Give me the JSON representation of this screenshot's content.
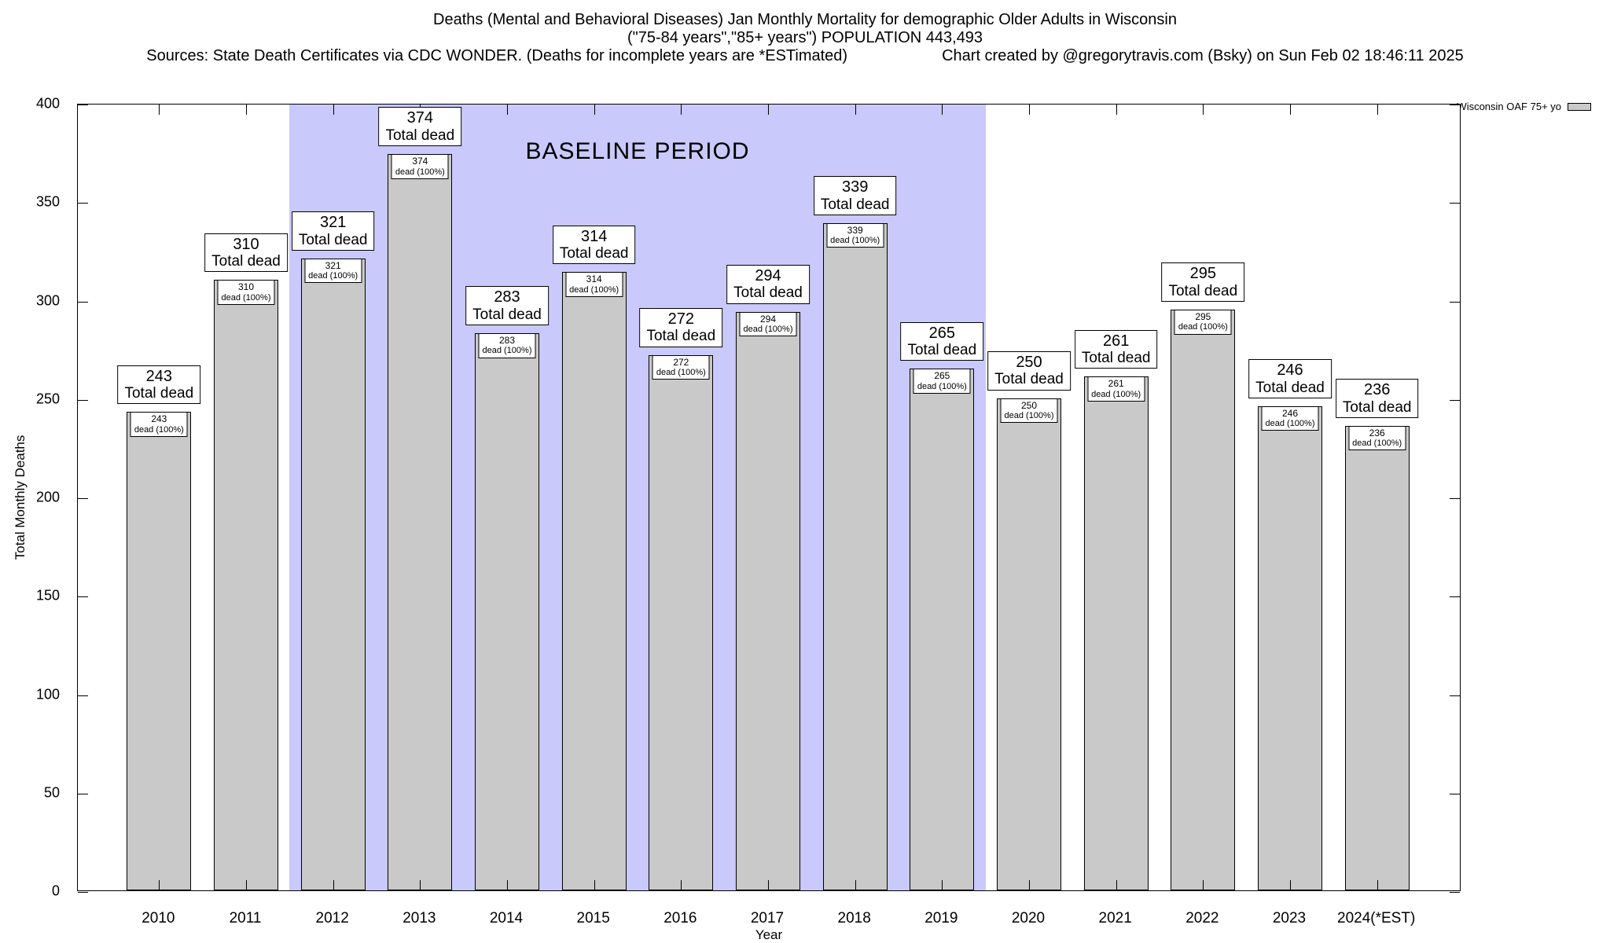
{
  "title": {
    "line1": "Deaths (Mental and Behavioral Diseases) Jan Monthly Mortality for demographic Older Adults in Wisconsin",
    "line2": "(\"75-84 years\",\"85+ years\") POPULATION 443,493",
    "sources": "Sources: State Death Certificates via CDC WONDER. (Deaths for incomplete years are *ESTimated)",
    "credit": "Chart created by @gregorytravis.com (Bsky) on Sun Feb 02 18:46:11 2025"
  },
  "chart_data": {
    "type": "bar",
    "title": "Deaths (Mental and Behavioral Diseases) Jan Monthly Mortality for demographic Older Adults in Wisconsin",
    "categories": [
      "2010",
      "2011",
      "2012",
      "2013",
      "2014",
      "2015",
      "2016",
      "2017",
      "2018",
      "2019",
      "2020",
      "2021",
      "2022",
      "2023",
      "2024(*EST)"
    ],
    "values": [
      243,
      310,
      321,
      374,
      283,
      314,
      272,
      294,
      339,
      265,
      250,
      261,
      295,
      246,
      236
    ],
    "xlabel": "Year",
    "ylabel": "Total Monthly Deaths",
    "ylim": [
      0,
      400
    ],
    "yticks": [
      0,
      50,
      100,
      150,
      200,
      250,
      300,
      350,
      400
    ],
    "grid": false,
    "bar_labels": {
      "above_suffix": "Total dead",
      "inner_suffix": "dead (100%)"
    },
    "baseline_band": {
      "label": "BASELINE PERIOD",
      "start": "2012",
      "end": "2019"
    },
    "legend": {
      "label": "Wisconsin OAF 75+ yo",
      "position": "top-right-outside"
    },
    "colors": {
      "bar_fill": "#c9c9c9",
      "bar_border": "#000000",
      "baseline_band": "#c9c9fb",
      "label_box_bg": "#ffffff",
      "label_box_border": "#000000"
    }
  }
}
